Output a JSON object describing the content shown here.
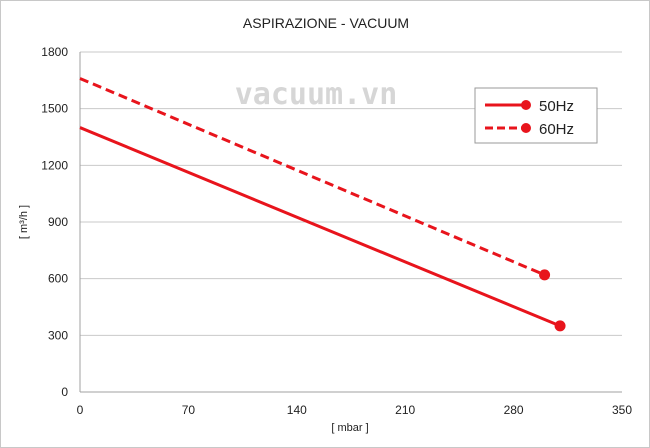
{
  "chart_data": {
    "type": "line",
    "title": "ASPIRAZIONE - VACUUM",
    "xlabel": "[ mbar ]",
    "ylabel": "[ m³/h ]",
    "xlim": [
      0,
      350
    ],
    "ylim": [
      0,
      1800
    ],
    "xticks": [
      0,
      70,
      140,
      210,
      280,
      350
    ],
    "yticks": [
      0,
      300,
      600,
      900,
      1200,
      1500,
      1800
    ],
    "grid": "horizontal",
    "legend_position": "top-right",
    "watermark": "vacuum.vn",
    "series": [
      {
        "name": "50Hz",
        "style": "solid",
        "color": "#e8141c",
        "x": [
          0,
          310
        ],
        "y": [
          1400,
          350
        ]
      },
      {
        "name": "60Hz",
        "style": "dashed",
        "color": "#e8141c",
        "x": [
          0,
          300
        ],
        "y": [
          1660,
          620
        ]
      }
    ]
  }
}
